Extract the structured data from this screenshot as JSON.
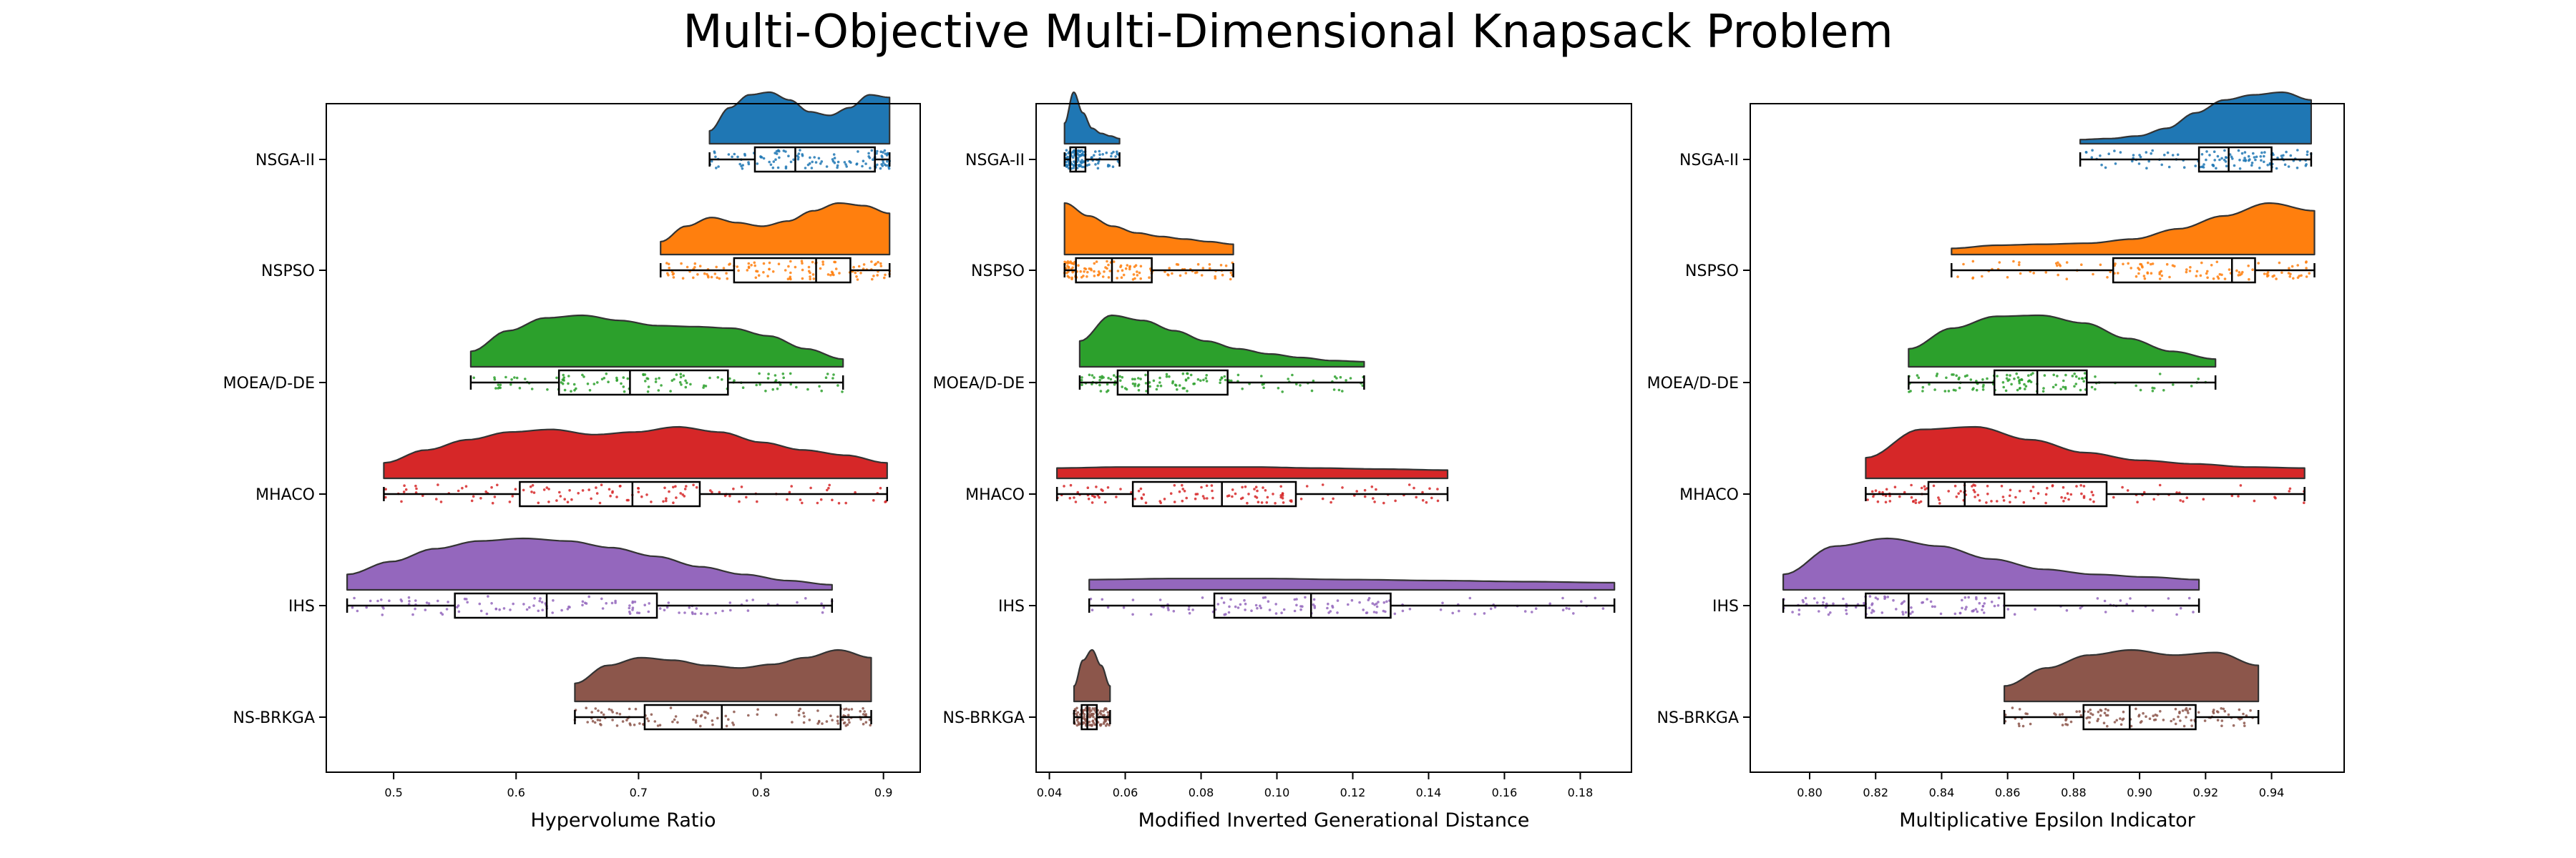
{
  "figure": {
    "title": "Multi-Objective Multi-Dimensional Knapsack Problem"
  },
  "chart_data": [
    {
      "type": "raincloud",
      "xlabel": "Hypervolume Ratio",
      "ylabel": "",
      "xlim": [
        0.445,
        0.93
      ],
      "xticks": [
        0.5,
        0.6,
        0.7,
        0.8,
        0.9
      ],
      "xtick_labels": [
        "0.5",
        "0.6",
        "0.7",
        "0.8",
        "0.9"
      ],
      "categories": [
        "NSGA-II",
        "NSPSO",
        "MOEA/D-DE",
        "MHACO",
        "IHS",
        "NS-BRKGA"
      ],
      "series": [
        {
          "name": "NSGA-II",
          "color": "#1f77b4",
          "min": 0.758,
          "q1": 0.795,
          "median": 0.828,
          "q3": 0.893,
          "max": 0.905,
          "density": [
            0.25,
            0.7,
            0.95,
            1.0,
            0.85,
            0.62,
            0.55,
            0.7,
            0.95,
            0.9
          ]
        },
        {
          "name": "NSPSO",
          "color": "#ff7f0e",
          "min": 0.718,
          "q1": 0.778,
          "median": 0.845,
          "q3": 0.873,
          "max": 0.905,
          "density": [
            0.25,
            0.55,
            0.72,
            0.62,
            0.55,
            0.65,
            0.85,
            1.0,
            0.95,
            0.8
          ]
        },
        {
          "name": "MOEA/D-DE",
          "color": "#2ca02c",
          "min": 0.563,
          "q1": 0.635,
          "median": 0.693,
          "q3": 0.773,
          "max": 0.867,
          "density": [
            0.3,
            0.7,
            0.95,
            1.0,
            0.9,
            0.8,
            0.78,
            0.75,
            0.6,
            0.35,
            0.15
          ]
        },
        {
          "name": "MHACO",
          "color": "#d62728",
          "min": 0.492,
          "q1": 0.603,
          "median": 0.695,
          "q3": 0.75,
          "max": 0.903,
          "density": [
            0.3,
            0.55,
            0.75,
            0.9,
            0.95,
            0.85,
            0.9,
            1.0,
            0.9,
            0.7,
            0.55,
            0.45,
            0.3
          ]
        },
        {
          "name": "IHS",
          "color": "#9467bd",
          "min": 0.462,
          "q1": 0.55,
          "median": 0.625,
          "q3": 0.715,
          "max": 0.858,
          "density": [
            0.3,
            0.55,
            0.8,
            0.95,
            1.0,
            0.95,
            0.82,
            0.65,
            0.45,
            0.3,
            0.18,
            0.1
          ]
        },
        {
          "name": "NS-BRKGA",
          "color": "#8c564b",
          "min": 0.648,
          "q1": 0.705,
          "median": 0.768,
          "q3": 0.865,
          "max": 0.89,
          "density": [
            0.35,
            0.7,
            0.85,
            0.8,
            0.7,
            0.65,
            0.72,
            0.85,
            1.0,
            0.85
          ]
        }
      ]
    },
    {
      "type": "raincloud",
      "xlabel": "Modified Inverted Generational Distance",
      "ylabel": "",
      "xlim": [
        0.0365,
        0.1935
      ],
      "xticks": [
        0.04,
        0.06,
        0.08,
        0.1,
        0.12,
        0.14,
        0.16,
        0.18
      ],
      "xtick_labels": [
        "0.04",
        "0.06",
        "0.08",
        "0.10",
        "0.12",
        "0.14",
        "0.16",
        "0.18"
      ],
      "categories": [
        "NSGA-II",
        "NSPSO",
        "MOEA/D-DE",
        "MHACO",
        "IHS",
        "NS-BRKGA"
      ],
      "series": [
        {
          "name": "NSGA-II",
          "color": "#1f77b4",
          "min": 0.044,
          "q1": 0.0455,
          "median": 0.047,
          "q3": 0.0495,
          "max": 0.0585,
          "density": [
            0.4,
            1.0,
            0.6,
            0.3,
            0.2,
            0.15,
            0.1
          ]
        },
        {
          "name": "NSPSO",
          "color": "#ff7f0e",
          "min": 0.044,
          "q1": 0.047,
          "median": 0.0565,
          "q3": 0.067,
          "max": 0.0885,
          "density": [
            1.0,
            0.75,
            0.55,
            0.42,
            0.35,
            0.3,
            0.25,
            0.2
          ]
        },
        {
          "name": "MOEA/D-DE",
          "color": "#2ca02c",
          "min": 0.048,
          "q1": 0.058,
          "median": 0.066,
          "q3": 0.087,
          "max": 0.123,
          "density": [
            0.5,
            1.0,
            0.9,
            0.7,
            0.5,
            0.35,
            0.25,
            0.18,
            0.12,
            0.1
          ]
        },
        {
          "name": "MHACO",
          "color": "#d62728",
          "min": 0.042,
          "q1": 0.062,
          "median": 0.0855,
          "q3": 0.105,
          "max": 0.145,
          "density": [
            0.2,
            0.22,
            0.22,
            0.22,
            0.2,
            0.18,
            0.16
          ]
        },
        {
          "name": "IHS",
          "color": "#9467bd",
          "min": 0.0505,
          "q1": 0.0835,
          "median": 0.109,
          "q3": 0.13,
          "max": 0.189,
          "density": [
            0.2,
            0.22,
            0.22,
            0.2,
            0.18,
            0.16,
            0.14
          ]
        },
        {
          "name": "NS-BRKGA",
          "color": "#8c564b",
          "min": 0.0465,
          "q1": 0.0485,
          "median": 0.05,
          "q3": 0.0525,
          "max": 0.056,
          "density": [
            0.3,
            0.8,
            1.0,
            0.7,
            0.3
          ]
        }
      ]
    },
    {
      "type": "raincloud",
      "xlabel": "Multiplicative Epsilon Indicator",
      "ylabel": "",
      "xlim": [
        0.782,
        0.962
      ],
      "xticks": [
        0.8,
        0.82,
        0.84,
        0.86,
        0.88,
        0.9,
        0.92,
        0.94
      ],
      "xtick_labels": [
        "0.80",
        "0.82",
        "0.84",
        "0.86",
        "0.88",
        "0.90",
        "0.92",
        "0.94"
      ],
      "categories": [
        "NSGA-II",
        "NSPSO",
        "MOEA/D-DE",
        "MHACO",
        "IHS",
        "NS-BRKGA"
      ],
      "series": [
        {
          "name": "NSGA-II",
          "color": "#1f77b4",
          "min": 0.882,
          "q1": 0.918,
          "median": 0.927,
          "q3": 0.94,
          "max": 0.952,
          "density": [
            0.08,
            0.1,
            0.15,
            0.3,
            0.6,
            0.85,
            0.95,
            1.0,
            0.85
          ]
        },
        {
          "name": "NSPSO",
          "color": "#ff7f0e",
          "min": 0.843,
          "q1": 0.892,
          "median": 0.928,
          "q3": 0.935,
          "max": 0.953,
          "density": [
            0.12,
            0.18,
            0.2,
            0.22,
            0.3,
            0.5,
            0.75,
            1.0,
            0.85
          ]
        },
        {
          "name": "MOEA/D-DE",
          "color": "#2ca02c",
          "min": 0.83,
          "q1": 0.856,
          "median": 0.869,
          "q3": 0.884,
          "max": 0.923,
          "density": [
            0.35,
            0.75,
            0.98,
            1.0,
            0.85,
            0.55,
            0.3,
            0.15
          ]
        },
        {
          "name": "MHACO",
          "color": "#d62728",
          "min": 0.817,
          "q1": 0.836,
          "median": 0.847,
          "q3": 0.89,
          "max": 0.95,
          "density": [
            0.4,
            0.95,
            1.0,
            0.75,
            0.5,
            0.35,
            0.28,
            0.22,
            0.2
          ]
        },
        {
          "name": "IHS",
          "color": "#9467bd",
          "min": 0.792,
          "q1": 0.817,
          "median": 0.83,
          "q3": 0.859,
          "max": 0.918,
          "density": [
            0.3,
            0.85,
            1.0,
            0.85,
            0.6,
            0.4,
            0.3,
            0.25,
            0.2
          ]
        },
        {
          "name": "NS-BRKGA",
          "color": "#8c564b",
          "min": 0.859,
          "q1": 0.883,
          "median": 0.897,
          "q3": 0.917,
          "max": 0.936,
          "density": [
            0.3,
            0.65,
            0.9,
            1.0,
            0.9,
            0.95,
            0.7
          ]
        }
      ]
    }
  ]
}
